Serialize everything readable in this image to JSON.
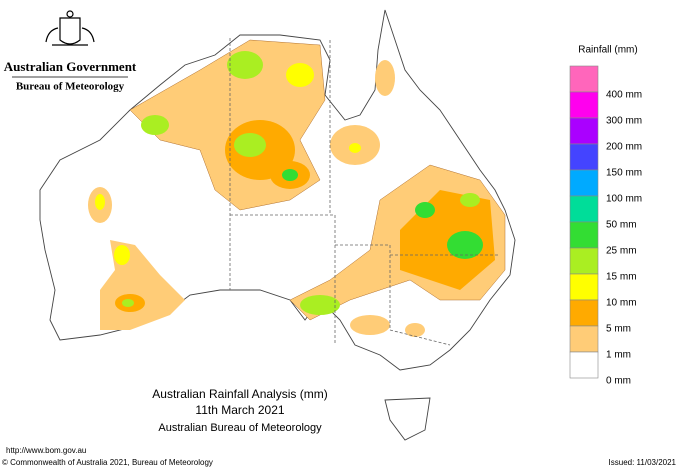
{
  "header": {
    "government": "Australian Government",
    "agency": "Bureau of Meteorology"
  },
  "legend": {
    "title": "Rainfall (mm)",
    "labels": [
      "400 mm",
      "300 mm",
      "200 mm",
      "150 mm",
      "100 mm",
      "50 mm",
      "25 mm",
      "15 mm",
      "10 mm",
      "5 mm",
      "1 mm",
      "0 mm"
    ],
    "colors": [
      "#ff66bb",
      "#ff00ee",
      "#aa00ff",
      "#4444ff",
      "#00aaff",
      "#00dd99",
      "#33dd33",
      "#aaee22",
      "#ffff00",
      "#ffaa00",
      "#ffcc77",
      "#ffffff"
    ]
  },
  "caption": {
    "title": "Australian Rainfall Analysis (mm)",
    "date": "11th March 2021",
    "source": "Australian Bureau of Meteorology"
  },
  "footer": {
    "url": "http://www.bom.gov.au",
    "copyright": "© Commonwealth of Australia 2021, Bureau of Meteorology",
    "issued": "Issued: 11/03/2021"
  }
}
